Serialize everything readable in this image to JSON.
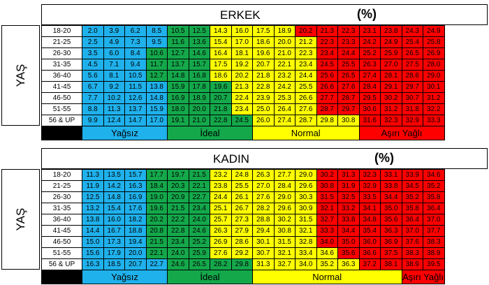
{
  "male": {
    "title": "ERKEK",
    "percent": "(%)",
    "yas": "YAŞ",
    "ages": [
      "18-20",
      "21-25",
      "26-30",
      "31-35",
      "36-40",
      "41-45",
      "46-50",
      "51-55",
      "56 & UP"
    ],
    "rows": [
      [
        "2.0",
        "3.9",
        "6.2",
        "8.5",
        "10.5",
        "12.5",
        "14.3",
        "16.0",
        "17.5",
        "18.9",
        "20.2",
        "21.3",
        "22.3",
        "23.1",
        "23.8",
        "24.3",
        "24.9"
      ],
      [
        "2.5",
        "4.9",
        "7.3",
        "9.5",
        "11.6",
        "13.6",
        "15.4",
        "17.0",
        "18.6",
        "20.0",
        "21.2",
        "22.3",
        "23.3",
        "24.2",
        "24.9",
        "25.4",
        "25.8"
      ],
      [
        "3.5",
        "6.0",
        "8.4",
        "10.6",
        "12.7",
        "14.6",
        "16.4",
        "18.1",
        "19.6",
        "21.0",
        "22.3",
        "23.4",
        "24.4",
        "25.2",
        "25.9",
        "26.5",
        "26.9"
      ],
      [
        "4.5",
        "7.1",
        "9.4",
        "11.7",
        "13.7",
        "15.7",
        "17.5",
        "19.2",
        "20.7",
        "22.1",
        "23.4",
        "24.5",
        "25.5",
        "26.3",
        "27.0",
        "27.5",
        "28.0"
      ],
      [
        "5.6",
        "8.1",
        "10.5",
        "12.7",
        "14.8",
        "16.8",
        "18.6",
        "20.2",
        "21.8",
        "23.2",
        "24.4",
        "25.6",
        "26.5",
        "27.4",
        "28.1",
        "28.6",
        "29.0"
      ],
      [
        "6.7",
        "9.2",
        "11.5",
        "13.8",
        "15.9",
        "17.8",
        "19.6",
        "21.3",
        "22.8",
        "24.2",
        "25.5",
        "26.6",
        "27.6",
        "28.4",
        "29.1",
        "29.7",
        "30.1"
      ],
      [
        "7.7",
        "10.2",
        "12.6",
        "14.8",
        "16.9",
        "18.9",
        "20.7",
        "22.4",
        "23.9",
        "25.3",
        "26.6",
        "27.7",
        "28.7",
        "29.5",
        "30.2",
        "30.7",
        "31.2"
      ],
      [
        "8.8",
        "11.3",
        "13.7",
        "15.9",
        "18.0",
        "20.0",
        "21.8",
        "23.4",
        "25.0",
        "26.4",
        "27.6",
        "28.7",
        "29.7",
        "30.6",
        "31.2",
        "31.8",
        "32.2"
      ],
      [
        "9.9",
        "12.4",
        "14.7",
        "17.0",
        "19.1",
        "21.0",
        "22.8",
        "24.5",
        "26.0",
        "27.4",
        "28.7",
        "29.8",
        "30.8",
        "31.6",
        "32.3",
        "32.9",
        "33.3"
      ]
    ],
    "categories": [
      "Yağsız",
      "İdeal",
      "Normal",
      "Aşırı Yağlı"
    ]
  },
  "female": {
    "title": "KADIN",
    "percent": "(%)",
    "yas": "YAŞ",
    "ages": [
      "18-20",
      "21-25",
      "26-30",
      "31-35",
      "36-40",
      "41-45",
      "46-50",
      "51-55",
      "56 & UP"
    ],
    "rows": [
      [
        "11.3",
        "13.5",
        "15.7",
        "17.7",
        "19.7",
        "21.5",
        "23.2",
        "24.8",
        "26.3",
        "27.7",
        "29.0",
        "30.2",
        "31.3",
        "32.3",
        "33.1",
        "33.9",
        "34.6"
      ],
      [
        "11.9",
        "14.2",
        "16.3",
        "18.4",
        "20.3",
        "22.1",
        "23.8",
        "25.5",
        "27.0",
        "28.4",
        "29.6",
        "30.8",
        "31.9",
        "32.9",
        "33.8",
        "34.5",
        "35.2"
      ],
      [
        "12.5",
        "14.8",
        "16.9",
        "19.0",
        "20.9",
        "22.7",
        "24.4",
        "26.1",
        "27.6",
        "29.0",
        "30.3",
        "31.5",
        "32.5",
        "33.5",
        "34.4",
        "35.2",
        "35.8"
      ],
      [
        "13.2",
        "15.4",
        "17.6",
        "19.6",
        "21.5",
        "23.4",
        "25.1",
        "26.7",
        "28.2",
        "29.6",
        "30.9",
        "32.1",
        "33.2",
        "34.1",
        "35.0",
        "35.8",
        "36.4"
      ],
      [
        "13.8",
        "16.0",
        "18.2",
        "20.2",
        "22.2",
        "24.0",
        "25.7",
        "27.3",
        "28.8",
        "30.2",
        "31.5",
        "32.7",
        "33.8",
        "34.8",
        "35.6",
        "36.4",
        "37.0"
      ],
      [
        "14.4",
        "16.7",
        "18.8",
        "20.8",
        "22.8",
        "24.6",
        "26.3",
        "27.9",
        "29.4",
        "30.8",
        "32.1",
        "33.3",
        "34.4",
        "35.4",
        "36.3",
        "37.0",
        "37.7"
      ],
      [
        "15.0",
        "17.3",
        "19.4",
        "21.5",
        "23.4",
        "25.2",
        "26.9",
        "28.6",
        "30.1",
        "31.5",
        "32.8",
        "34.0",
        "35.0",
        "36.0",
        "36.9",
        "37.6",
        "38.3"
      ],
      [
        "15.6",
        "17.9",
        "20.0",
        "22.1",
        "24.0",
        "25.9",
        "27.6",
        "29.2",
        "30.7",
        "32.1",
        "33.4",
        "34.6",
        "35.6",
        "36.6",
        "37.5",
        "38.3",
        "38.9"
      ],
      [
        "16.3",
        "18.5",
        "20.7",
        "22.7",
        "24.6",
        "26.5",
        "28.2",
        "29.8",
        "31.3",
        "32.7",
        "34.0",
        "35.2",
        "36.3",
        "37.2",
        "38.1",
        "38.9",
        "39.5"
      ]
    ],
    "categories": [
      "Yağsız",
      "İdeal",
      "Normal",
      "Aşırı Yağlı"
    ]
  },
  "colors": {
    "blue": "#1fb1ec",
    "green": "#14a84b",
    "yellow": "#ffff00",
    "red": "#ff0000"
  }
}
